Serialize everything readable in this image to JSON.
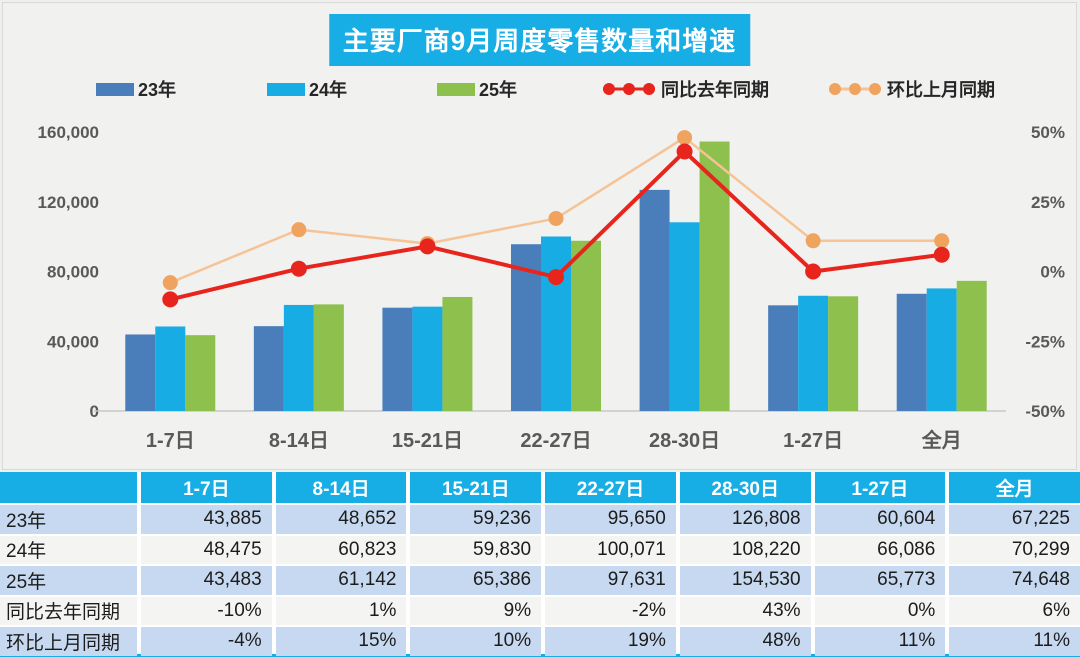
{
  "title": "主要厂商9月周度零售数量和增速",
  "colors": {
    "accent_cyan": "#17ade5",
    "bar_23": "#4a7ebb",
    "bar_24": "#18ace4",
    "bar_25": "#8dc04d",
    "line_yoy": "#e8251d",
    "line_mom_stroke": "#f6c396",
    "line_mom_marker": "#f0a35e",
    "axis_line": "#c8c8c8",
    "row_blue": "#c7d9f0",
    "row_white": "#f4f4f3"
  },
  "legend": [
    {
      "label": "23年",
      "type": "bar",
      "color_key": "bar_23"
    },
    {
      "label": "24年",
      "type": "bar",
      "color_key": "bar_24"
    },
    {
      "label": "25年",
      "type": "bar",
      "color_key": "bar_25"
    },
    {
      "label": "同比去年同期",
      "type": "line",
      "color_key": "line_yoy"
    },
    {
      "label": "环比上月同期",
      "type": "line",
      "color_key": "line_mom_marker"
    }
  ],
  "chart_data": {
    "type": "combo-bar-line",
    "title": "主要厂商9月周度零售数量和增速",
    "categories": [
      "1-7日",
      "8-14日",
      "15-21日",
      "22-27日",
      "28-30日",
      "1-27日",
      "全月"
    ],
    "bar_series": [
      {
        "name": "23年",
        "values": [
          43885,
          48652,
          59236,
          95650,
          126808,
          60604,
          67225
        ]
      },
      {
        "name": "24年",
        "values": [
          48475,
          60823,
          59830,
          100071,
          108220,
          66086,
          70299
        ]
      },
      {
        "name": "25年",
        "values": [
          43483,
          61142,
          65386,
          97631,
          154530,
          65773,
          74648
        ]
      }
    ],
    "line_series": [
      {
        "name": "同比去年同期",
        "values_pct": [
          -10,
          1,
          9,
          -2,
          43,
          0,
          6
        ]
      },
      {
        "name": "环比上月同期",
        "values_pct": [
          -4,
          15,
          10,
          19,
          48,
          11,
          11
        ]
      }
    ],
    "left_axis": {
      "min": 0,
      "max": 160000,
      "step": 40000,
      "tick_labels": [
        "0",
        "40,000",
        "80,000",
        "120,000",
        "160,000"
      ]
    },
    "right_axis": {
      "min": -50,
      "max": 50,
      "step": 25,
      "tick_labels": [
        "-50%",
        "-25%",
        "0%",
        "25%",
        "50%"
      ]
    },
    "grid": false,
    "legend_position": "top"
  },
  "table": {
    "col_headers": [
      "",
      "1-7日",
      "8-14日",
      "15-21日",
      "22-27日",
      "28-30日",
      "1-27日",
      "全月"
    ],
    "rows": [
      {
        "label": "23年",
        "cells": [
          "43,885",
          "48,652",
          "59,236",
          "95,650",
          "126,808",
          "60,604",
          "67,225"
        ]
      },
      {
        "label": "24年",
        "cells": [
          "48,475",
          "60,823",
          "59,830",
          "100,071",
          "108,220",
          "66,086",
          "70,299"
        ]
      },
      {
        "label": "25年",
        "cells": [
          "43,483",
          "61,142",
          "65,386",
          "97,631",
          "154,530",
          "65,773",
          "74,648"
        ]
      },
      {
        "label": "同比去年同期",
        "cells": [
          "-10%",
          "1%",
          "9%",
          "-2%",
          "43%",
          "0%",
          "6%"
        ]
      },
      {
        "label": "环比上月同期",
        "cells": [
          "-4%",
          "15%",
          "10%",
          "19%",
          "48%",
          "11%",
          "11%"
        ]
      }
    ]
  }
}
